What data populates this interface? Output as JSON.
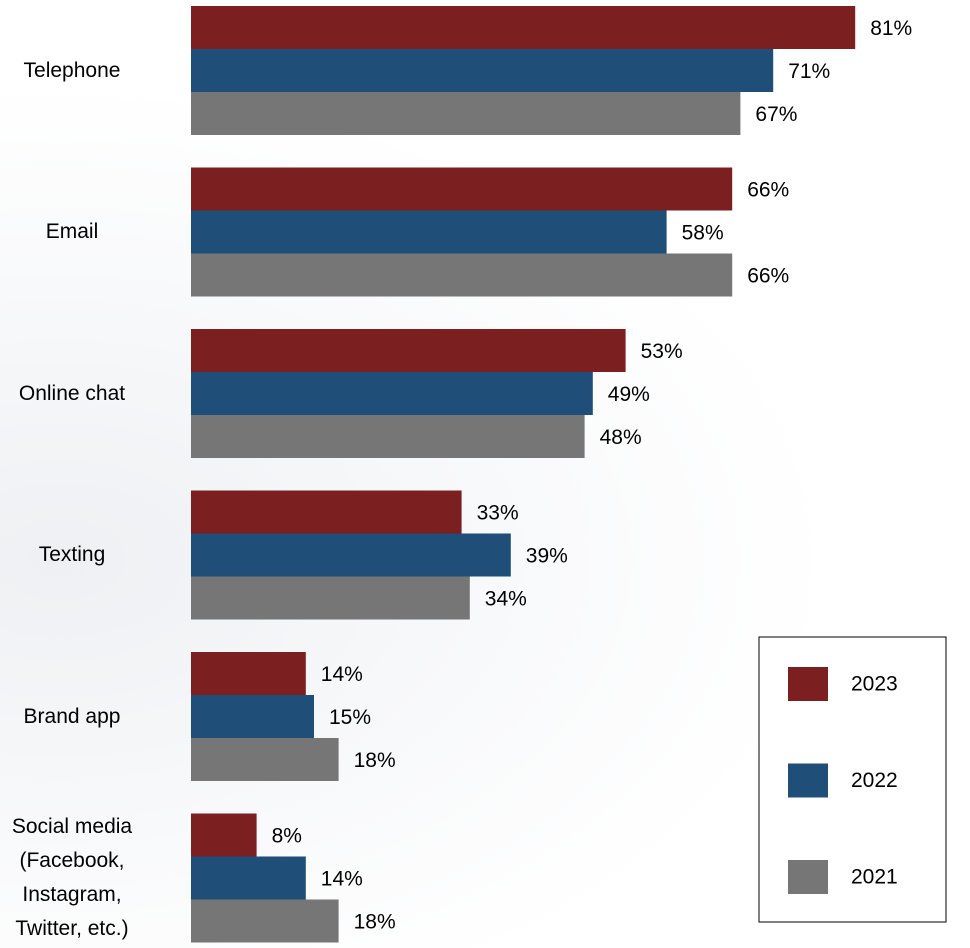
{
  "chart_data": {
    "type": "hbar",
    "categories": [
      "Telephone",
      "Email",
      "Online chat",
      "Texting",
      "Brand app",
      "Social media (Facebook, Instagram, Twitter, etc.)"
    ],
    "series": [
      {
        "name": "2023",
        "color": "#7b1f20",
        "values": [
          81,
          66,
          53,
          33,
          14,
          8
        ],
        "value_labels": [
          "81%",
          "66%",
          "53%",
          "33%",
          "14%",
          "8%"
        ]
      },
      {
        "name": "2022",
        "color": "#1f4e78",
        "values": [
          71,
          58,
          49,
          39,
          15,
          14
        ],
        "value_labels": [
          "71%",
          "58%",
          "49%",
          "39%",
          "15%",
          "14%"
        ]
      },
      {
        "name": "2021",
        "color": "#767676",
        "values": [
          67,
          66,
          48,
          34,
          18,
          18
        ],
        "value_labels": [
          "67%",
          "66%",
          "48%",
          "34%",
          "18%",
          "18%"
        ]
      }
    ],
    "xlim": [
      0,
      95
    ],
    "legend": "bottom-right"
  }
}
